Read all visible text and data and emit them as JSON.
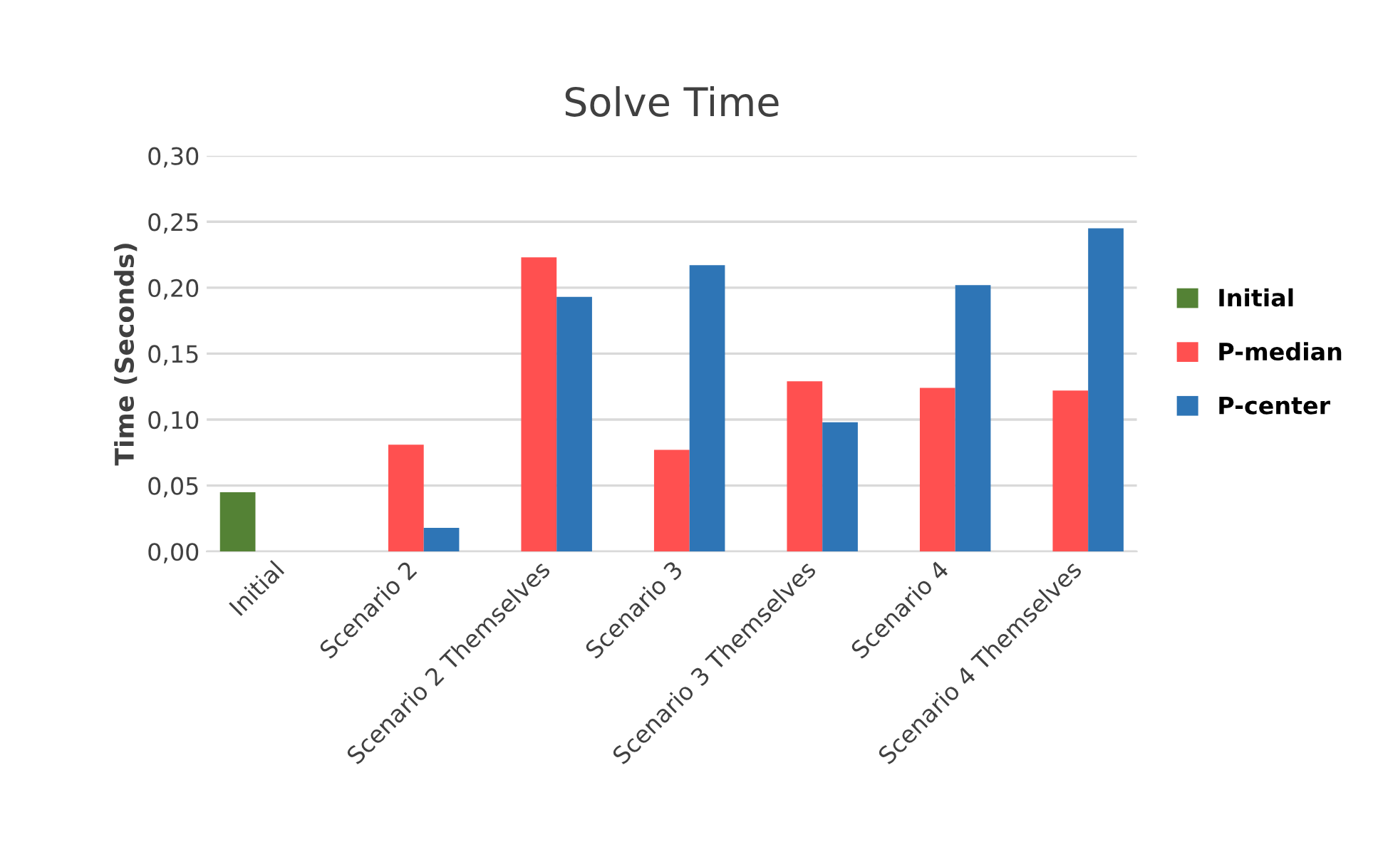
{
  "chart_data": {
    "type": "bar",
    "title": "Solve Time",
    "ylabel": "Time (Seconds)",
    "categories": [
      "Initial",
      "Scenario 2",
      "Scenario 2 Themselves",
      "Scenario 3",
      "Scenario 3 Themselves",
      "Scenario 4",
      "Scenario 4 Themselves"
    ],
    "series": [
      {
        "name": "Initial",
        "color": "#548235",
        "values": [
          0.045,
          null,
          null,
          null,
          null,
          null,
          null
        ]
      },
      {
        "name": "P-median",
        "color": "#ff5050",
        "values": [
          null,
          0.081,
          0.223,
          0.077,
          0.129,
          0.124,
          0.122
        ]
      },
      {
        "name": "P-center",
        "color": "#2e75b6",
        "values": [
          null,
          0.018,
          0.193,
          0.217,
          0.098,
          0.202,
          0.245
        ]
      }
    ],
    "ylim": [
      0,
      0.3
    ],
    "yticks": [
      {
        "value": 0,
        "label": "0,00"
      },
      {
        "value": 0.05,
        "label": "0,05"
      },
      {
        "value": 0.1,
        "label": "0,10"
      },
      {
        "value": 0.15,
        "label": "0,15"
      },
      {
        "value": 0.2,
        "label": "0,20"
      },
      {
        "value": 0.25,
        "label": "0,25"
      },
      {
        "value": 0.3,
        "label": "0,30"
      }
    ],
    "grid": "y",
    "legend": "right"
  }
}
